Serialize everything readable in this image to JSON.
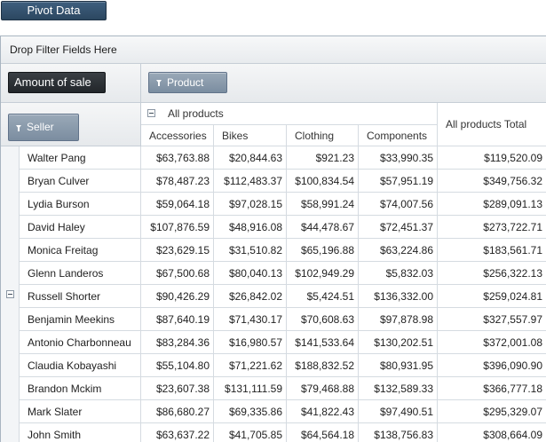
{
  "toolbar": {
    "pivot_button_label": "Pivot Data"
  },
  "filter_zone": {
    "label": "Drop Filter Fields Here"
  },
  "data_zone": {
    "measure_label": "Amount of sale"
  },
  "column_zone": {
    "field_label": "Product"
  },
  "row_zone": {
    "field_label": "Seller"
  },
  "column_header": {
    "group_label": "All products",
    "columns": [
      "Accessories",
      "Bikes",
      "Clothing",
      "Components"
    ],
    "total_label": "All products Total"
  },
  "rows": [
    {
      "seller": "Walter Pang",
      "values": [
        "$63,763.88",
        "$20,844.63",
        "$921.23",
        "$33,990.35"
      ],
      "total": "$119,520.09"
    },
    {
      "seller": "Bryan Culver",
      "values": [
        "$78,487.23",
        "$112,483.37",
        "$100,834.54",
        "$57,951.19"
      ],
      "total": "$349,756.32"
    },
    {
      "seller": "Lydia Burson",
      "values": [
        "$59,064.18",
        "$97,028.15",
        "$58,991.24",
        "$74,007.56"
      ],
      "total": "$289,091.13"
    },
    {
      "seller": "David Haley",
      "values": [
        "$107,876.59",
        "$48,916.08",
        "$44,478.67",
        "$72,451.37"
      ],
      "total": "$273,722.71"
    },
    {
      "seller": "Monica Freitag",
      "values": [
        "$23,629.15",
        "$31,510.82",
        "$65,196.88",
        "$63,224.86"
      ],
      "total": "$183,561.71"
    },
    {
      "seller": "Glenn Landeros",
      "values": [
        "$67,500.68",
        "$80,040.13",
        "$102,949.29",
        "$5,832.03"
      ],
      "total": "$256,322.13"
    },
    {
      "seller": "Russell Shorter",
      "values": [
        "$90,426.29",
        "$26,842.02",
        "$5,424.51",
        "$136,332.00"
      ],
      "total": "$259,024.81"
    },
    {
      "seller": "Benjamin Meekins",
      "values": [
        "$87,640.19",
        "$71,430.17",
        "$70,608.63",
        "$97,878.98"
      ],
      "total": "$327,557.97"
    },
    {
      "seller": "Antonio Charbonneau",
      "values": [
        "$83,284.36",
        "$16,980.57",
        "$141,533.64",
        "$130,202.51"
      ],
      "total": "$372,001.08"
    },
    {
      "seller": "Claudia Kobayashi",
      "values": [
        "$55,104.80",
        "$71,221.62",
        "$188,832.52",
        "$80,931.95"
      ],
      "total": "$396,090.90"
    },
    {
      "seller": "Brandon Mckim",
      "values": [
        "$23,607.38",
        "$131,111.59",
        "$79,468.88",
        "$132,589.33"
      ],
      "total": "$366,777.18"
    },
    {
      "seller": "Mark Slater",
      "values": [
        "$86,680.27",
        "$69,335.86",
        "$41,822.43",
        "$97,490.51"
      ],
      "total": "$295,329.07"
    },
    {
      "seller": "John Smith",
      "values": [
        "$63,637.22",
        "$41,705.85",
        "$64,564.18",
        "$138,756.83"
      ],
      "total": "$308,664.09"
    }
  ]
}
